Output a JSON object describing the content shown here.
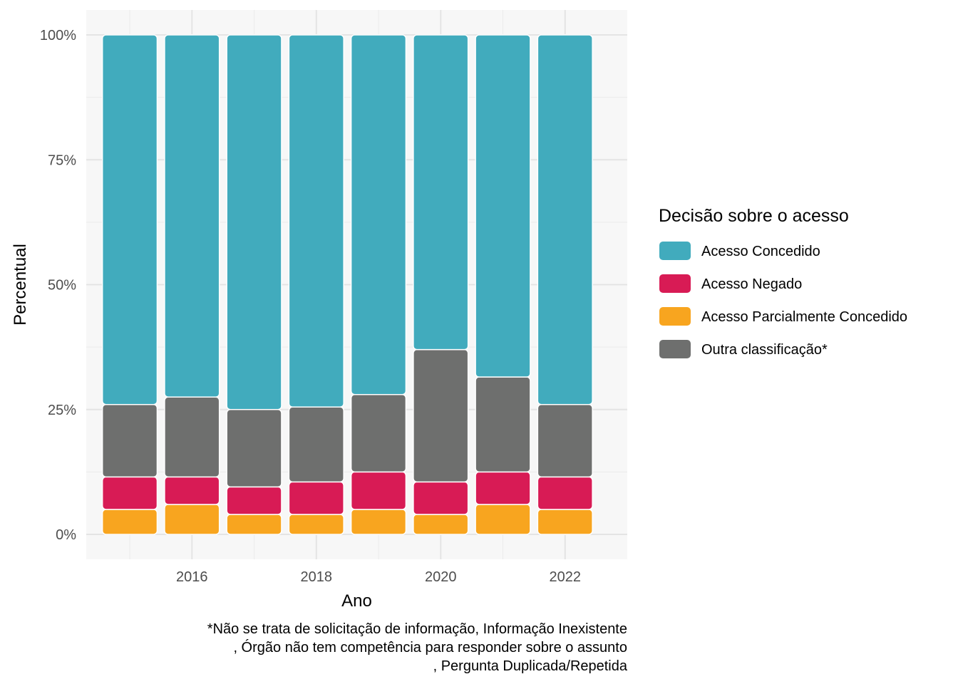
{
  "chart_data": {
    "type": "bar",
    "stacked": true,
    "percent": true,
    "xlabel": "Ano",
    "ylabel": "Percentual",
    "x": [
      2015,
      2016,
      2017,
      2018,
      2019,
      2020,
      2021,
      2022
    ],
    "xticks": [
      "2016",
      "2018",
      "2020",
      "2022"
    ],
    "yticks": [
      "0%",
      "25%",
      "50%",
      "75%",
      "100%"
    ],
    "ylim": [
      0,
      1
    ],
    "grid": true,
    "legend": {
      "title": "Decisão sobre o acesso",
      "position": "right"
    },
    "series": [
      {
        "name": "Acesso Parcialmente Concedido",
        "color": "#F8A51F",
        "values": [
          0.05,
          0.06,
          0.04,
          0.04,
          0.05,
          0.04,
          0.06,
          0.05
        ]
      },
      {
        "name": "Acesso Negado",
        "color": "#D81B55",
        "values": [
          0.065,
          0.055,
          0.055,
          0.065,
          0.075,
          0.065,
          0.065,
          0.065
        ]
      },
      {
        "name": "Outra classificação*",
        "color": "#6E6F6E",
        "values": [
          0.145,
          0.16,
          0.155,
          0.15,
          0.155,
          0.265,
          0.19,
          0.145
        ]
      },
      {
        "name": "Acesso Concedido",
        "color": "#41ABBD",
        "values": [
          0.74,
          0.725,
          0.75,
          0.745,
          0.72,
          0.63,
          0.685,
          0.74
        ]
      }
    ],
    "legend_order": [
      "Acesso Concedido",
      "Acesso Negado",
      "Acesso Parcialmente Concedido",
      "Outra classificação*"
    ]
  },
  "caption": {
    "lines": [
      "*Não se trata de solicitação de informação, Informação Inexistente",
      ", Órgão não tem competência para responder sobre o assunto",
      ", Pergunta Duplicada/Repetida"
    ]
  }
}
